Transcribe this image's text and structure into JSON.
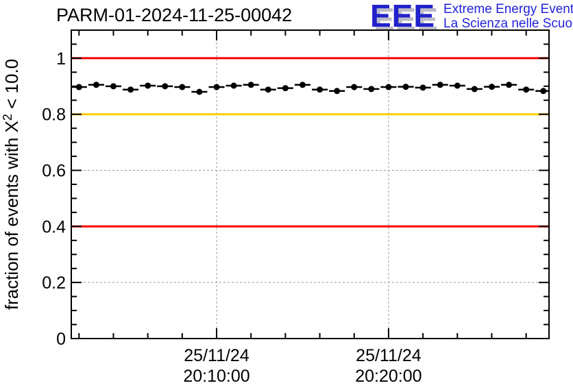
{
  "logo": {
    "acronym": "EEE",
    "line1": "Extreme Energy Events",
    "line2": "La Scienza nelle Scuole",
    "blue": "#2222cc",
    "shadow_gray": "#bcbcc8"
  },
  "colors": {
    "frame": "#000000",
    "grid": "#9a9a9a",
    "red": "#ff0000",
    "orange": "#ffcc00",
    "marker": "#000000",
    "background": "#ffffff"
  },
  "chart_data": {
    "type": "line",
    "title": "PARM-01-2024-11-25-00042",
    "ylabel": {
      "pre": "fraction of events with X",
      "sup": "2",
      "post": " < 10.0"
    },
    "xlabel": "",
    "ylim": [
      0,
      1.1
    ],
    "yticks": [
      0,
      0.2,
      0.4,
      0.6,
      0.8,
      1
    ],
    "ytick_labels": [
      "0",
      "0.2",
      "0.4",
      "0.6",
      "0.8",
      "1"
    ],
    "y_minor_step": 0.05,
    "x_axis": {
      "unit": "minutes after 20:00:00 on 25/11/24",
      "range": [
        1.55,
        29.33
      ],
      "minor_step": 2,
      "major_ticks": [
        {
          "t": 10,
          "label": [
            "25/11/24",
            "20:10:00"
          ]
        },
        {
          "t": 20,
          "label": [
            "25/11/24",
            "20:20:00"
          ]
        }
      ]
    },
    "grid": {
      "show": true,
      "color": "#9a9a9a",
      "dash": "3 3"
    },
    "threshold_lines": [
      {
        "y": 1.0,
        "color": "#ff0000"
      },
      {
        "y": 0.8,
        "color": "#ffcc00"
      },
      {
        "y": 0.4,
        "color": "#ff0000"
      }
    ],
    "legend": null,
    "series": [
      {
        "name": "fraction of events with chi2 < 10.0",
        "marker": "filled-circle",
        "color": "#000000",
        "x_err_half": 0.46,
        "points": [
          {
            "t": 2,
            "time": "20:02:00",
            "value": 0.897
          },
          {
            "t": 3,
            "time": "20:03:00",
            "value": 0.905
          },
          {
            "t": 4,
            "time": "20:04:00",
            "value": 0.9
          },
          {
            "t": 5,
            "time": "20:05:00",
            "value": 0.888
          },
          {
            "t": 6,
            "time": "20:06:00",
            "value": 0.902
          },
          {
            "t": 7,
            "time": "20:07:00",
            "value": 0.9
          },
          {
            "t": 8,
            "time": "20:08:00",
            "value": 0.897
          },
          {
            "t": 9,
            "time": "20:09:00",
            "value": 0.88
          },
          {
            "t": 10,
            "time": "20:10:00",
            "value": 0.897
          },
          {
            "t": 11,
            "time": "20:11:00",
            "value": 0.902
          },
          {
            "t": 12,
            "time": "20:12:00",
            "value": 0.905
          },
          {
            "t": 13,
            "time": "20:13:00",
            "value": 0.888
          },
          {
            "t": 14,
            "time": "20:14:00",
            "value": 0.893
          },
          {
            "t": 15,
            "time": "20:15:00",
            "value": 0.905
          },
          {
            "t": 16,
            "time": "20:16:00",
            "value": 0.888
          },
          {
            "t": 17,
            "time": "20:17:00",
            "value": 0.883
          },
          {
            "t": 18,
            "time": "20:18:00",
            "value": 0.897
          },
          {
            "t": 19,
            "time": "20:19:00",
            "value": 0.89
          },
          {
            "t": 20,
            "time": "20:20:00",
            "value": 0.897
          },
          {
            "t": 21,
            "time": "20:21:00",
            "value": 0.898
          },
          {
            "t": 22,
            "time": "20:22:00",
            "value": 0.895
          },
          {
            "t": 23,
            "time": "20:23:00",
            "value": 0.905
          },
          {
            "t": 24,
            "time": "20:24:00",
            "value": 0.902
          },
          {
            "t": 25,
            "time": "20:25:00",
            "value": 0.89
          },
          {
            "t": 26,
            "time": "20:26:00",
            "value": 0.898
          },
          {
            "t": 27,
            "time": "20:27:00",
            "value": 0.905
          },
          {
            "t": 28,
            "time": "20:28:00",
            "value": 0.888
          },
          {
            "t": 29,
            "time": "20:29:00",
            "value": 0.883
          }
        ]
      }
    ]
  }
}
